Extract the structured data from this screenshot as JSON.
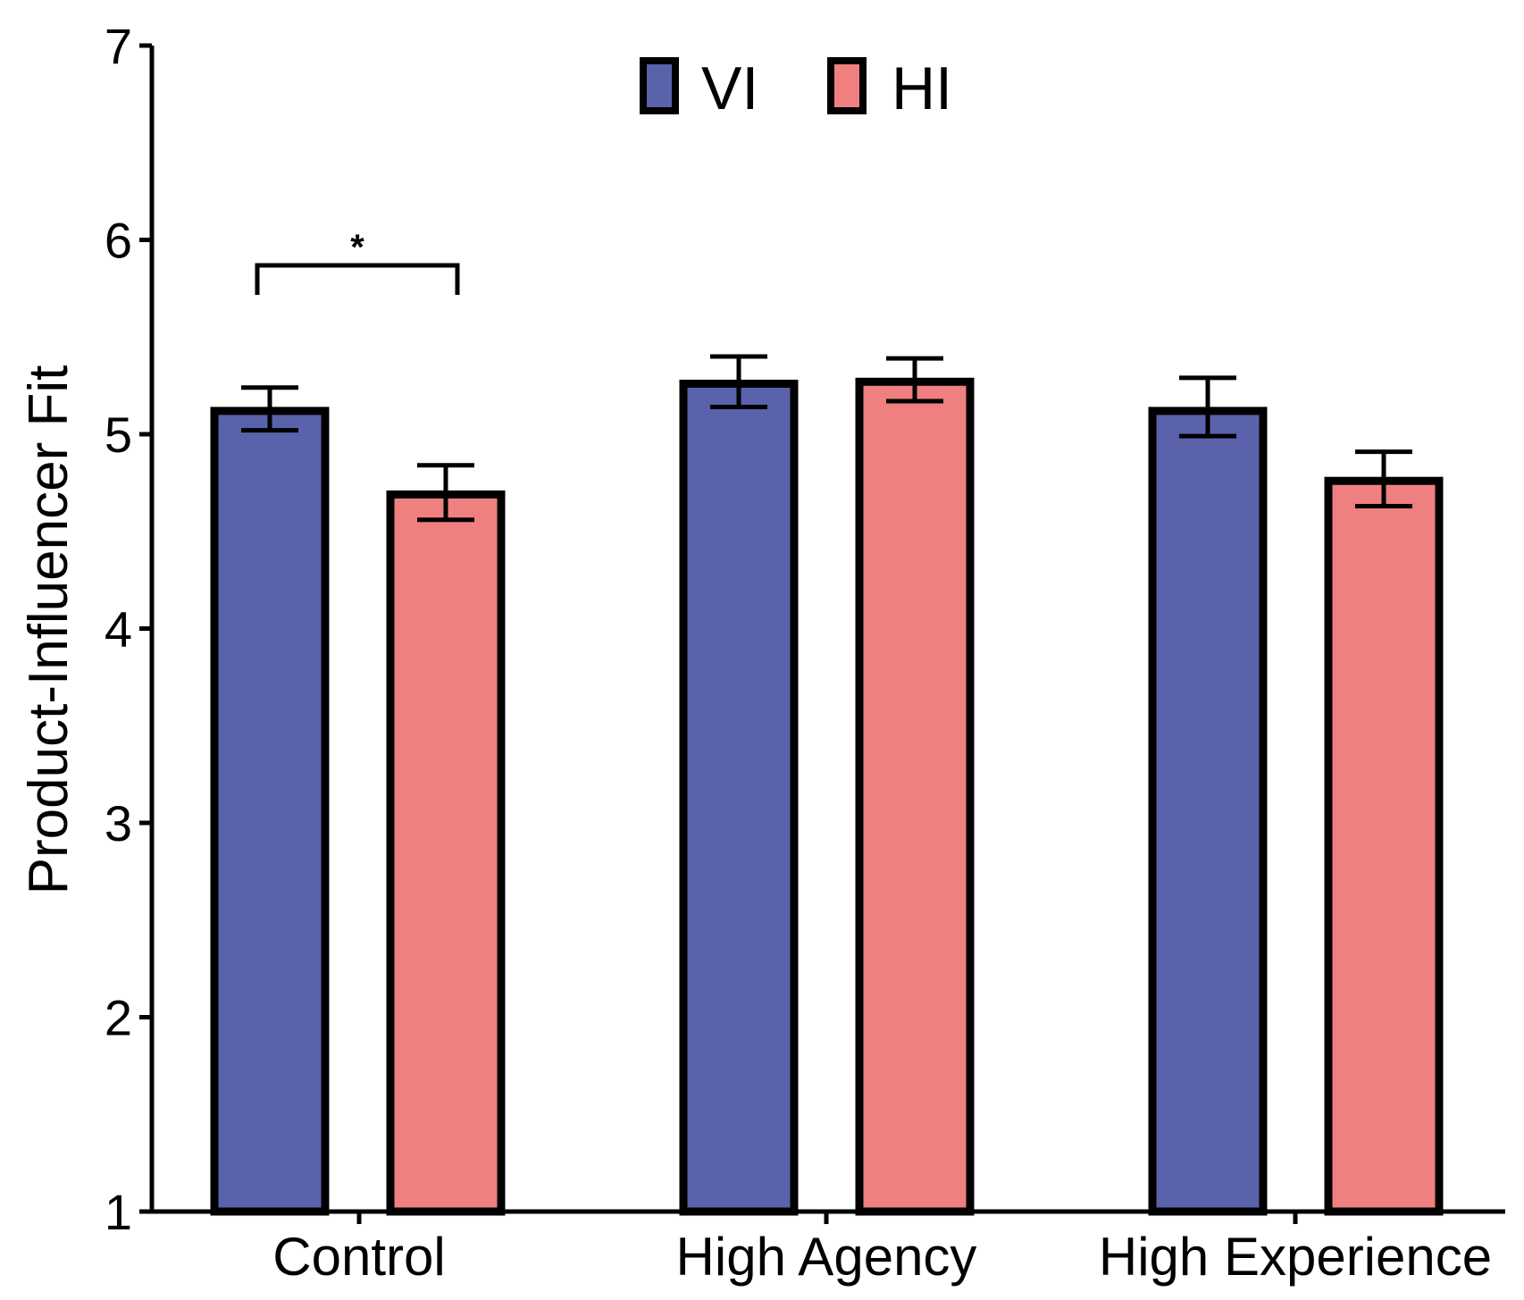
{
  "chart_data": {
    "type": "bar",
    "title": "",
    "xlabel": "",
    "ylabel": "Product-Influencer Fit",
    "ylim": [
      1,
      7
    ],
    "yticks": [
      "1",
      "2",
      "3",
      "4",
      "5",
      "6",
      "7"
    ],
    "grid": false,
    "legend_position": "top-center",
    "categories": [
      "Control",
      "High Agency",
      "High Experience"
    ],
    "series": [
      {
        "name": "VI",
        "color": "#5962aa",
        "values": [
          5.12,
          5.26,
          5.12
        ],
        "err_low": [
          5.02,
          5.14,
          4.99
        ],
        "err_high": [
          5.24,
          5.4,
          5.29
        ]
      },
      {
        "name": "HI",
        "color": "#f08080",
        "values": [
          4.69,
          5.27,
          4.76
        ],
        "err_low": [
          4.56,
          5.17,
          4.63
        ],
        "err_high": [
          4.84,
          5.39,
          4.91
        ]
      }
    ],
    "annotations": [
      {
        "text": "*",
        "category": "Control",
        "type": "significance-bracket"
      }
    ]
  }
}
